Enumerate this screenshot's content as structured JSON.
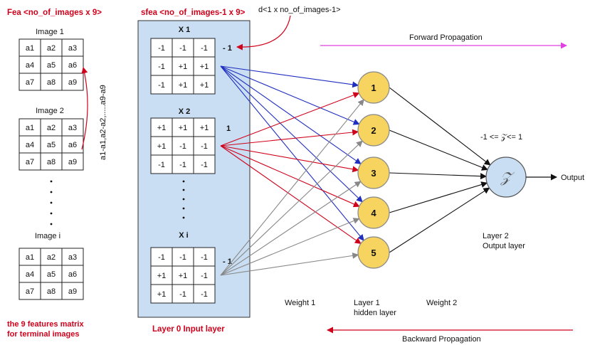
{
  "left": {
    "title": "Fea <no_of_images x 9>",
    "images": [
      {
        "label": "Image 1",
        "cells": [
          "a1",
          "a2",
          "a3",
          "a4",
          "a5",
          "a6",
          "a7",
          "a8",
          "a9"
        ]
      },
      {
        "label": "Image 2",
        "cells": [
          "a1",
          "a2",
          "a3",
          "a4",
          "a5",
          "a6",
          "a7",
          "a8",
          "a9"
        ]
      },
      {
        "label": "Image i",
        "cells": [
          "a1",
          "a2",
          "a3",
          "a4",
          "a5",
          "a6",
          "a7",
          "a8",
          "a9"
        ]
      }
    ],
    "vertical_label": "a1-a1,a2-a2,.....a9-a9",
    "caption_line1": "the 9 features matrix",
    "caption_line2": "for terminal images"
  },
  "input_layer": {
    "title": "sfea <no_of_images-1 x 9>",
    "caption": "Layer 0 Input layer",
    "d_label": "d<1 x no_of_images-1>",
    "blocks": [
      {
        "label": "X 1",
        "cells": [
          "-1",
          "-1",
          "-1",
          "-1",
          "+1",
          "+1",
          "-1",
          "+1",
          "+1"
        ],
        "d": "- 1"
      },
      {
        "label": "X 2",
        "cells": [
          "+1",
          "+1",
          "+1",
          "+1",
          "-1",
          "-1",
          "-1",
          "-1",
          "-1"
        ],
        "d": "1"
      },
      {
        "label": "X i",
        "cells": [
          "-1",
          "-1",
          "-1",
          "+1",
          "+1",
          "-1",
          "+1",
          "-1",
          "-1"
        ],
        "d": "- 1"
      }
    ]
  },
  "hidden_layer": {
    "nodes": [
      "1",
      "2",
      "3",
      "4",
      "5"
    ],
    "caption_line1": "Layer 1",
    "caption_line2": "hidden layer"
  },
  "output_layer": {
    "node_symbol": "𝒵",
    "constraint": "-1 <= 𝒵<= 1",
    "output_label": "Output",
    "caption_line1": "Layer 2",
    "caption_line2": "Output layer"
  },
  "weights": {
    "weight1": "Weight 1",
    "weight2": "Weight 2"
  },
  "propagation": {
    "forward": "Forward Propagation",
    "backward": "Backward Propagation"
  },
  "colors": {
    "red": "#d0021b",
    "blue": "#1f2fbf",
    "gray": "#888888",
    "panel": "#c9def2",
    "node": "#f7d35f",
    "magenta": "#e040e0"
  }
}
